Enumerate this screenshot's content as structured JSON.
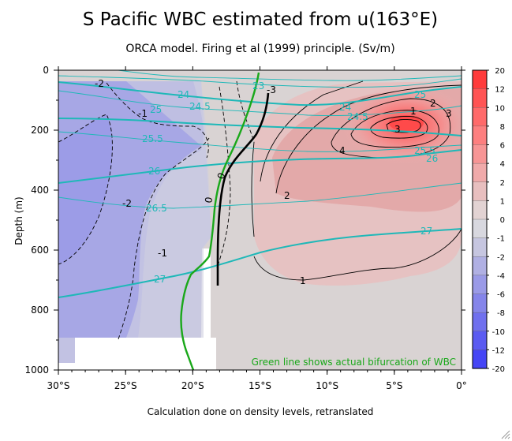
{
  "chart_data": {
    "type": "heatmap",
    "title": "S Pacific WBC estimated from u(163°E)",
    "subtitle": "ORCA model. Firing et al (1999) principle. (Sv/m)",
    "xlabel": "Calculation done on density levels, retranslated",
    "ylabel": "Depth (m)",
    "x_ticks": [
      "30°S",
      "25°S",
      "20°S",
      "15°S",
      "10°S",
      "5°S",
      "0°"
    ],
    "x_tick_values": [
      -30,
      -25,
      -20,
      -15,
      -10,
      -5,
      0
    ],
    "y_ticks": [
      "0",
      "200",
      "400",
      "600",
      "800",
      "1000"
    ],
    "y_tick_values": [
      0,
      200,
      400,
      600,
      800,
      1000
    ],
    "xlim": [
      -30,
      0
    ],
    "ylim": [
      1000,
      0
    ],
    "colorbar": {
      "levels": [
        "20",
        "12",
        "10",
        "8",
        "6",
        "4",
        "2",
        "1",
        "0",
        "-1",
        "-2",
        "-4",
        "-6",
        "-8",
        "-10",
        "-12",
        "-20"
      ],
      "colors": [
        "#ff3b3b",
        "#ff5454",
        "#ff6a6a",
        "#fd7f7f",
        "#f79595",
        "#f0aaaa",
        "#e8bfbf",
        "#e2d3d3",
        "#d8d8df",
        "#c6c6e0",
        "#b0b0e3",
        "#9a9ae7",
        "#8585ea",
        "#7070ee",
        "#5b5bf1",
        "#4545f5"
      ]
    },
    "transport_labels": [
      "0",
      "0",
      "-1",
      "-1",
      "-2",
      "-2",
      "-3",
      "2",
      "1",
      "4",
      "1",
      "2",
      "3",
      "3"
    ],
    "density_labels": [
      "24",
      "24.5",
      "25",
      "25.5",
      "26",
      "26.5",
      "27",
      "24",
      "24.5",
      "25",
      "25.5",
      "26",
      "27",
      "23"
    ],
    "annotation": "Green line shows actual bifurcation of WBC",
    "bifurcation_curve": [
      [
        -16.4,
        0
      ],
      [
        -16.8,
        100
      ],
      [
        -17.3,
        200
      ],
      [
        -17.9,
        300
      ],
      [
        -18.2,
        400
      ],
      [
        -18.5,
        500
      ],
      [
        -19.1,
        580
      ],
      [
        -20.5,
        650
      ],
      [
        -21.2,
        700
      ],
      [
        -21.5,
        780
      ],
      [
        -21.2,
        850
      ],
      [
        -20.6,
        930
      ],
      [
        -20.0,
        1000
      ]
    ],
    "zero_transport_curve": [
      [
        -14.2,
        80
      ],
      [
        -14.6,
        150
      ],
      [
        -15.8,
        220
      ],
      [
        -16.8,
        290
      ],
      [
        -17.5,
        360
      ],
      [
        -17.8,
        450
      ],
      [
        -17.8,
        560
      ],
      [
        -17.8,
        720
      ]
    ]
  }
}
